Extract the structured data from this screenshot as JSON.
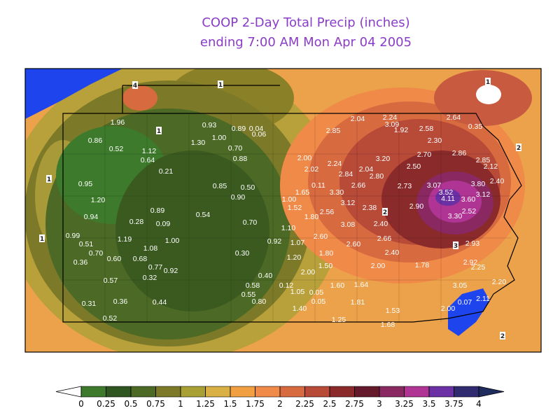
{
  "header": {
    "title_lines": [
      "COOP 2-Day Total Precip (inches)",
      "ending 7:00 AM Mon Apr 04 2005"
    ]
  },
  "colorbar": {
    "ticks": [
      0,
      0.25,
      0.5,
      0.75,
      1,
      1.25,
      1.5,
      1.75,
      2,
      2.25,
      2.5,
      2.75,
      3,
      3.25,
      3.5,
      3.75,
      4
    ],
    "colors": [
      "#ffffff",
      "#3d7a2c",
      "#2f5520",
      "#4c6a26",
      "#7c7a28",
      "#a8a034",
      "#d8b044",
      "#f0a040",
      "#f08a48",
      "#d86a40",
      "#b84a38",
      "#8a2a2a",
      "#641a2a",
      "#8a2862",
      "#b03494",
      "#6a30a4",
      "#302a70",
      "#1e2c5e"
    ]
  },
  "contour_labels": [
    "1",
    "4",
    "1",
    "1",
    "1",
    "1",
    "2",
    "2",
    "3",
    "2"
  ],
  "stations": [
    "1.96",
    "0.93",
    "0.89",
    "0.04",
    "0.06",
    "1.30",
    "1.00",
    "0.70",
    "0.88",
    "1.12",
    "0.64",
    "0.21",
    "0.86",
    "0.52",
    "0.95",
    "1.20",
    "0.94",
    "0.89",
    "0.09",
    "0.28",
    "0.99",
    "0.51",
    "0.70",
    "0.36",
    "0.60",
    "0.68",
    "1.08",
    "1.00",
    "1.19",
    "0.77",
    "0.92",
    "0.32",
    "0.57",
    "0.31",
    "0.52",
    "0.36",
    "0.44",
    "0.54",
    "0.85",
    "0.50",
    "0.90",
    "0.70",
    "0.30",
    "0.40",
    "0.58",
    "0.55",
    "0.80",
    "1.40",
    "0.05",
    "1.25",
    "1.60",
    "1.64",
    "1.81",
    "1.68",
    "1.53",
    "1.78",
    "2.00",
    "2.40",
    "2.60",
    "3.08",
    "2.38",
    "2.90",
    "2.40",
    "3.12",
    "3.30",
    "2.56",
    "2.73",
    "2.70",
    "2.50",
    "2.30",
    "2.58",
    "2.24",
    "3.09",
    "1.92",
    "2.04",
    "2.85",
    "2.64",
    "0.35",
    "2.86",
    "2.85",
    "2.12",
    "3.80",
    "3.60",
    "3.12",
    "2.40",
    "2.52",
    "3.07",
    "3.52",
    "4.11",
    "3.30",
    "2.93",
    "2.92",
    "2.25",
    "2.20",
    "3.05",
    "2.00",
    "0.07",
    "2.11",
    "2.66",
    "1.80",
    "1.50",
    "2.60",
    "2.02",
    "2.24",
    "2.66",
    "2.00",
    "1.80",
    "1.00",
    "1.52",
    "1.65",
    "0.11",
    "1.10",
    "0.92",
    "1.07",
    "1.20",
    "2.00",
    "0.12",
    "1.05",
    "0.05",
    "2.80",
    "2.04",
    "3.20",
    "2.84"
  ]
}
